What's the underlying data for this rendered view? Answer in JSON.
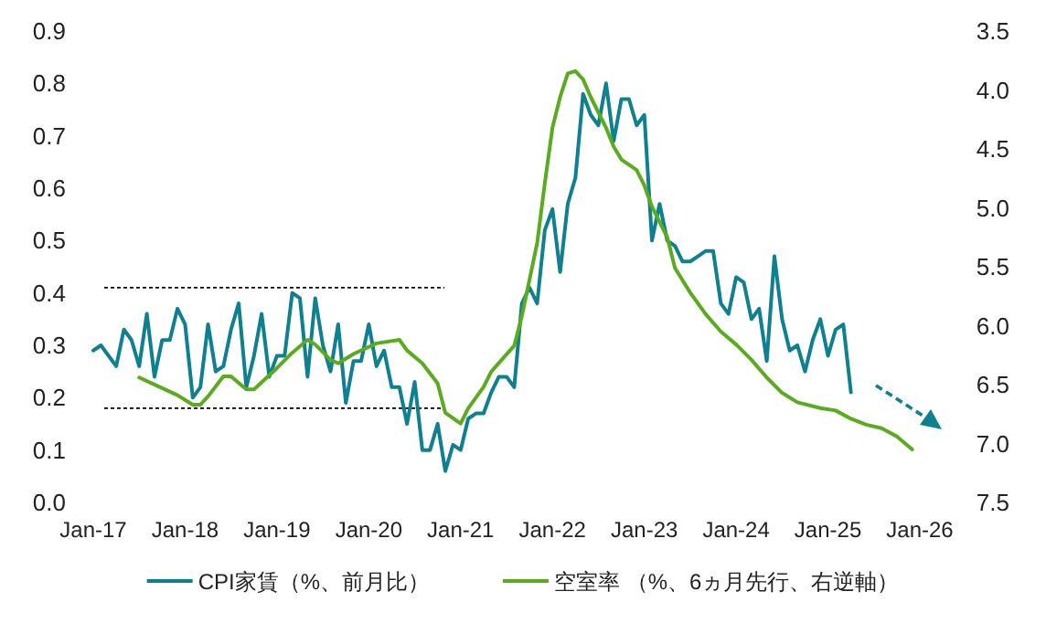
{
  "chart_data": {
    "type": "line",
    "xlim": [
      "2017-01",
      "2026-01"
    ],
    "xticks": [
      {
        "value": "2017-01",
        "label": "Jan-17"
      },
      {
        "value": "2018-01",
        "label": "Jan-18"
      },
      {
        "value": "2019-01",
        "label": "Jan-19"
      },
      {
        "value": "2020-01",
        "label": "Jan-20"
      },
      {
        "value": "2021-01",
        "label": "Jan-21"
      },
      {
        "value": "2022-01",
        "label": "Jan-22"
      },
      {
        "value": "2023-01",
        "label": "Jan-23"
      },
      {
        "value": "2024-01",
        "label": "Jan-24"
      },
      {
        "value": "2025-01",
        "label": "Jan-25"
      },
      {
        "value": "2026-01",
        "label": "Jan-26"
      }
    ],
    "ylim": [
      0,
      0.9
    ],
    "yticks": [
      {
        "value": 0,
        "label": "0.0"
      },
      {
        "value": 0.1,
        "label": "0.1"
      },
      {
        "value": 0.2,
        "label": "0.2"
      },
      {
        "value": 0.3,
        "label": "0.3"
      },
      {
        "value": 0.4,
        "label": "0.4"
      },
      {
        "value": 0.5,
        "label": "0.5"
      },
      {
        "value": 0.6,
        "label": "0.6"
      },
      {
        "value": 0.7,
        "label": "0.7"
      },
      {
        "value": 0.8,
        "label": "0.8"
      },
      {
        "value": 0.9,
        "label": "0.9"
      }
    ],
    "y2lim": [
      7.5,
      3.5
    ],
    "y2ticks": [
      {
        "value": 3.5,
        "label": "3.5"
      },
      {
        "value": 4,
        "label": "4.0"
      },
      {
        "value": 4.5,
        "label": "4.5"
      },
      {
        "value": 5,
        "label": "5.0"
      },
      {
        "value": 5.5,
        "label": "5.5"
      },
      {
        "value": 6,
        "label": "6.0"
      },
      {
        "value": 6.5,
        "label": "6.5"
      },
      {
        "value": 7,
        "label": "7.0"
      },
      {
        "value": 7.5,
        "label": "7.5"
      }
    ],
    "legend": "bottom",
    "ref_lines": [
      {
        "axis": "y",
        "value": 0.41,
        "color": "#000000",
        "line_style": "dotted"
      },
      {
        "axis": "y",
        "value": 0.18,
        "color": "#000000",
        "line_style": "dotted"
      }
    ],
    "series": [
      {
        "name": "CPI家賃（%、前月比）",
        "color": "#0e8090",
        "x": [
          "2017-01",
          "2017-02",
          "2017-03",
          "2017-04",
          "2017-05",
          "2017-06",
          "2017-07",
          "2017-08",
          "2017-09",
          "2017-10",
          "2017-11",
          "2017-12",
          "2018-01",
          "2018-02",
          "2018-03",
          "2018-04",
          "2018-05",
          "2018-06",
          "2018-07",
          "2018-08",
          "2018-09",
          "2018-10",
          "2018-11",
          "2018-12",
          "2019-01",
          "2019-02",
          "2019-03",
          "2019-04",
          "2019-05",
          "2019-06",
          "2019-07",
          "2019-08",
          "2019-09",
          "2019-10",
          "2019-11",
          "2019-12",
          "2020-01",
          "2020-02",
          "2020-03",
          "2020-04",
          "2020-05",
          "2020-06",
          "2020-07",
          "2020-08",
          "2020-09",
          "2020-10",
          "2020-11",
          "2020-12",
          "2021-01",
          "2021-02",
          "2021-03",
          "2021-04",
          "2021-05",
          "2021-06",
          "2021-07",
          "2021-08",
          "2021-09",
          "2021-10",
          "2021-11",
          "2021-12",
          "2022-01",
          "2022-02",
          "2022-03",
          "2022-04",
          "2022-05",
          "2022-06",
          "2022-07",
          "2022-08",
          "2022-09",
          "2022-10",
          "2022-11",
          "2022-12",
          "2023-01",
          "2023-02",
          "2023-03",
          "2023-04",
          "2023-05",
          "2023-06",
          "2023-07",
          "2023-08",
          "2023-09",
          "2023-10",
          "2023-11",
          "2023-12",
          "2024-01",
          "2024-02",
          "2024-03",
          "2024-04",
          "2024-05",
          "2024-06",
          "2024-07",
          "2024-08",
          "2024-09",
          "2024-10",
          "2024-11",
          "2024-12",
          "2025-01",
          "2025-02",
          "2025-03",
          "2025-04"
        ],
        "values": [
          0.29,
          0.3,
          0.28,
          0.26,
          0.33,
          0.31,
          0.26,
          0.36,
          0.24,
          0.31,
          0.31,
          0.37,
          0.34,
          0.2,
          0.22,
          0.34,
          0.25,
          0.26,
          0.33,
          0.38,
          0.22,
          0.28,
          0.36,
          0.24,
          0.28,
          0.28,
          0.4,
          0.39,
          0.24,
          0.39,
          0.3,
          0.25,
          0.34,
          0.19,
          0.27,
          0.27,
          0.34,
          0.26,
          0.29,
          0.22,
          0.22,
          0.15,
          0.23,
          0.1,
          0.1,
          0.15,
          0.06,
          0.11,
          0.1,
          0.16,
          0.17,
          0.17,
          0.21,
          0.24,
          0.24,
          0.22,
          0.38,
          0.41,
          0.38,
          0.52,
          0.56,
          0.44,
          0.57,
          0.62,
          0.78,
          0.74,
          0.72,
          0.8,
          0.69,
          0.77,
          0.77,
          0.72,
          0.74,
          0.5,
          0.57,
          0.5,
          0.49,
          0.46,
          0.46,
          0.47,
          0.48,
          0.48,
          0.38,
          0.36,
          0.43,
          0.42,
          0.35,
          0.37,
          0.27,
          0.47,
          0.35,
          0.29,
          0.3,
          0.25,
          0.31,
          0.35,
          0.28,
          0.33,
          0.34,
          0.21
        ]
      },
      {
        "name": "空室率 （%、6ヵ月先行、右逆軸）",
        "color": "#5aab1e",
        "axis": "y2",
        "x": [
          "2017-07",
          "2017-10",
          "2017-12",
          "2018-02",
          "2018-03",
          "2018-04",
          "2018-06",
          "2018-07",
          "2018-09",
          "2018-10",
          "2019-01",
          "2019-03",
          "2019-05",
          "2019-06",
          "2019-08",
          "2019-09",
          "2019-11",
          "2020-02",
          "2020-05",
          "2020-06",
          "2020-08",
          "2020-10",
          "2020-11",
          "2021-01",
          "2021-02",
          "2021-04",
          "2021-05",
          "2021-08",
          "2021-09",
          "2021-11",
          "2021-12",
          "2022-01",
          "2022-02",
          "2022-03",
          "2022-04",
          "2022-05",
          "2022-06",
          "2022-08",
          "2022-09",
          "2022-10",
          "2022-12",
          "2023-01",
          "2023-02",
          "2023-04",
          "2023-05",
          "2023-07",
          "2023-09",
          "2023-11",
          "2024-01",
          "2024-03",
          "2024-05",
          "2024-07",
          "2024-09",
          "2024-12",
          "2025-02",
          "2025-04",
          "2025-06",
          "2025-08",
          "2025-10",
          "2025-12"
        ],
        "values": [
          6.44,
          6.53,
          6.59,
          6.67,
          6.67,
          6.6,
          6.43,
          6.43,
          6.54,
          6.54,
          6.36,
          6.23,
          6.12,
          6.16,
          6.29,
          6.32,
          6.24,
          6.15,
          6.12,
          6.21,
          6.32,
          6.49,
          6.74,
          6.83,
          6.7,
          6.52,
          6.39,
          6.17,
          5.92,
          5.3,
          4.79,
          4.32,
          4.06,
          3.86,
          3.84,
          3.91,
          4.06,
          4.32,
          4.48,
          4.59,
          4.68,
          4.81,
          4.99,
          5.25,
          5.51,
          5.72,
          5.9,
          6.05,
          6.16,
          6.29,
          6.44,
          6.57,
          6.65,
          6.7,
          6.72,
          6.79,
          6.84,
          6.87,
          6.94,
          7.05
        ]
      }
    ]
  }
}
